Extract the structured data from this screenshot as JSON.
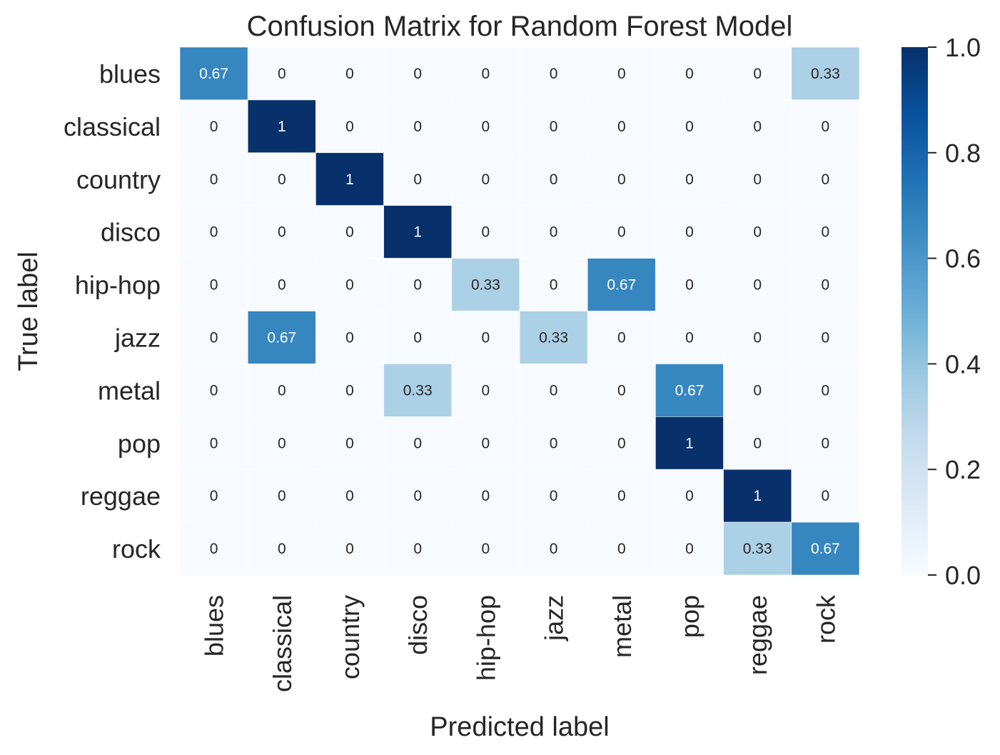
{
  "chart_data": {
    "type": "heatmap",
    "title": "Confusion Matrix for Random Forest Model",
    "xlabel": "Predicted label",
    "ylabel": "True label",
    "x_categories": [
      "blues",
      "classical",
      "country",
      "disco",
      "hip-hop",
      "jazz",
      "metal",
      "pop",
      "reggae",
      "rock"
    ],
    "y_categories": [
      "blues",
      "classical",
      "country",
      "disco",
      "hip-hop",
      "jazz",
      "metal",
      "pop",
      "reggae",
      "rock"
    ],
    "values": [
      [
        0.67,
        0,
        0,
        0,
        0,
        0,
        0,
        0,
        0,
        0.33
      ],
      [
        0,
        1,
        0,
        0,
        0,
        0,
        0,
        0,
        0,
        0
      ],
      [
        0,
        0,
        1,
        0,
        0,
        0,
        0,
        0,
        0,
        0
      ],
      [
        0,
        0,
        0,
        1,
        0,
        0,
        0,
        0,
        0,
        0
      ],
      [
        0,
        0,
        0,
        0,
        0.33,
        0,
        0.67,
        0,
        0,
        0
      ],
      [
        0,
        0.67,
        0,
        0,
        0,
        0.33,
        0,
        0,
        0,
        0
      ],
      [
        0,
        0,
        0,
        0.33,
        0,
        0,
        0,
        0.67,
        0,
        0
      ],
      [
        0,
        0,
        0,
        0,
        0,
        0,
        0,
        1,
        0,
        0
      ],
      [
        0,
        0,
        0,
        0,
        0,
        0,
        0,
        0,
        1,
        0
      ],
      [
        0,
        0,
        0,
        0,
        0,
        0,
        0,
        0,
        0.33,
        0.67
      ]
    ],
    "colorbar": {
      "range": [
        0,
        1
      ],
      "ticks": [
        "0.0",
        "0.2",
        "0.4",
        "0.6",
        "0.8",
        "1.0"
      ],
      "colormap": "Blues"
    },
    "colors": {
      "low": "#f7fbff",
      "high": "#08306b",
      "text_dark": "#262626",
      "text_light": "#ffffff"
    }
  }
}
